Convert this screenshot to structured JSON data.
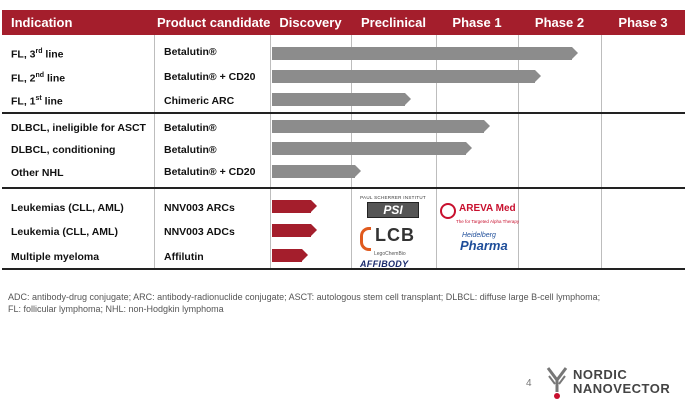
{
  "header": {
    "indication": "Indication",
    "product": "Product candidate",
    "phases": [
      "Discovery",
      "Preclinical",
      "Phase 1",
      "Phase 2",
      "Phase 3"
    ]
  },
  "colors": {
    "accent": "#a41e2c",
    "bar_grey": "#8c8c8c"
  },
  "groups": [
    {
      "rows": [
        {
          "ind_main": "FL, 3",
          "ind_sup": "rd",
          "ind_tail": " line",
          "product": "Betalutin®",
          "product_tail": "",
          "stage": 3.72,
          "color": "grey"
        },
        {
          "ind_main": "FL, 2",
          "ind_sup": "nd",
          "ind_tail": " line",
          "product": "Betalutin®",
          "product_tail": " + CD20",
          "stage": 3.28,
          "color": "grey"
        },
        {
          "ind_main": "FL, 1",
          "ind_sup": "st",
          "ind_tail": " line",
          "product": "Chimeric ARC",
          "product_tail": "",
          "stage": 1.7,
          "color": "grey"
        }
      ]
    },
    {
      "rows": [
        {
          "ind_main": "DLBCL, ineligible for ASCT",
          "ind_sup": "",
          "ind_tail": "",
          "product": "Betalutin®",
          "product_tail": "",
          "stage": 2.66,
          "color": "grey"
        },
        {
          "ind_main": "DLBCL, conditioning",
          "ind_sup": "",
          "ind_tail": "",
          "product": "Betalutin®",
          "product_tail": "",
          "stage": 2.44,
          "color": "grey"
        },
        {
          "ind_main": "Other NHL",
          "ind_sup": "",
          "ind_tail": "",
          "product": "Betalutin®",
          "product_tail": " + CD20",
          "stage": 1.12,
          "color": "grey"
        }
      ]
    },
    {
      "rows": [
        {
          "ind_main": "Leukemias (CLL, AML)",
          "ind_sup": "",
          "ind_tail": "",
          "product": "NNV003 ARCs",
          "product_tail": "",
          "stage": 0.58,
          "color": "red"
        },
        {
          "ind_main": "Leukemia (CLL, AML)",
          "ind_sup": "",
          "ind_tail": "",
          "product": "NNV003 ADCs",
          "product_tail": "",
          "stage": 0.58,
          "color": "red"
        },
        {
          "ind_main": "Multiple myeloma",
          "ind_sup": "",
          "ind_tail": "",
          "product": "Affilutin",
          "product_tail": "",
          "stage": 0.47,
          "color": "red"
        }
      ]
    }
  ],
  "partners": {
    "psi_caption": "PAUL SCHERRER INSTITUT",
    "psi": "PSI",
    "lcb": "LCB",
    "lcb_caption": "LegoChemBio",
    "affibody": "AFFIBODY",
    "areva": "AREVA Med",
    "areva_caption": "The for Targeted Alpha Therapy",
    "heidelberg_small": "Heidelberg",
    "heidelberg": "Pharma"
  },
  "footnote": {
    "line1": "ADC: antibody-drug conjugate; ARC: antibody-radionuclide conjugate; ASCT: autologous stem cell transplant; DLBCL: diffuse large B-cell lymphoma;",
    "line2": "FL: follicular lymphoma; NHL: non-Hodgkin lymphoma"
  },
  "page_number": "4",
  "brand": {
    "line1": "NORDIC",
    "line2": "NANOVECTOR"
  }
}
